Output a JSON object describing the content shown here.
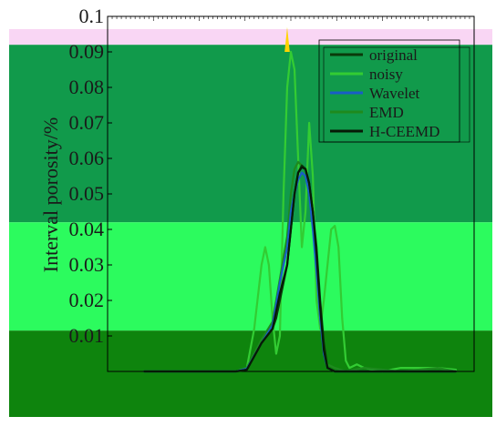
{
  "chart_data": {
    "type": "line",
    "ylabel": "Interval porosity/%",
    "ylim": [
      0,
      0.1
    ],
    "yticks": [
      0.01,
      0.02,
      0.03,
      0.04,
      0.05,
      0.06,
      0.07,
      0.08,
      0.09,
      0.1
    ],
    "ytick_labels": [
      "0.01",
      "0.02",
      "0.03",
      "0.04",
      "0.05",
      "0.06",
      "0.07",
      "0.08",
      "0.09",
      "0.1"
    ],
    "xlim": [
      0,
      100
    ],
    "legend_position": "top-right",
    "bands": [
      {
        "from": 0.092,
        "to": 0.1,
        "color": "#f9d6f4"
      },
      {
        "from": 0.042,
        "to": 0.092,
        "color": "#119a4b"
      },
      {
        "from": 0.0115,
        "to": 0.042,
        "color": "#2cfb5e"
      },
      {
        "from": -0.02,
        "to": 0.0115,
        "color": "#0e840d"
      }
    ],
    "series": [
      {
        "name": "original",
        "color": "#0a3a0a",
        "width": 2.2,
        "x": [
          10,
          20,
          30,
          35,
          38,
          42,
          45,
          46,
          47,
          48,
          49,
          50,
          51,
          52,
          53,
          54,
          55,
          56,
          57,
          58,
          59,
          60,
          62,
          65,
          70,
          80,
          90,
          95
        ],
        "y": [
          0,
          0,
          0,
          0,
          0.0005,
          0.008,
          0.012,
          0.015,
          0.02,
          0.025,
          0.03,
          0.04,
          0.05,
          0.056,
          0.058,
          0.057,
          0.053,
          0.045,
          0.035,
          0.02,
          0.008,
          0.001,
          0,
          0,
          0,
          0,
          0,
          0
        ]
      },
      {
        "name": "noisy",
        "color": "#33cc33",
        "width": 2.2,
        "x": [
          10,
          20,
          30,
          35,
          38,
          40,
          42,
          43,
          44,
          45,
          46,
          47,
          48,
          49,
          50,
          51,
          52,
          53,
          54,
          55,
          56,
          57,
          58,
          59,
          60,
          61,
          62,
          63,
          64,
          65,
          66,
          68,
          70,
          75,
          80,
          90,
          95
        ],
        "y": [
          0,
          0,
          0,
          0,
          0.001,
          0.012,
          0.03,
          0.035,
          0.03,
          0.015,
          0.005,
          0.01,
          0.05,
          0.08,
          0.09,
          0.085,
          0.06,
          0.035,
          0.045,
          0.07,
          0.055,
          0.02,
          0.012,
          0.02,
          0.03,
          0.04,
          0.041,
          0.035,
          0.015,
          0.003,
          0.001,
          0.002,
          0.001,
          0,
          0.001,
          0.001,
          0.0005
        ]
      },
      {
        "name": "Wavelet",
        "color": "#1a5cc8",
        "width": 2.2,
        "x": [
          10,
          20,
          30,
          35,
          38,
          42,
          45,
          47,
          49,
          50,
          51,
          52,
          53,
          54,
          55,
          56,
          57,
          58,
          59,
          60,
          62,
          65,
          70,
          80,
          90,
          95
        ],
        "y": [
          0,
          0,
          0,
          0,
          0.0008,
          0.008,
          0.013,
          0.025,
          0.035,
          0.045,
          0.05,
          0.054,
          0.056,
          0.055,
          0.05,
          0.04,
          0.028,
          0.015,
          0.005,
          0.001,
          0,
          0,
          0,
          0,
          0,
          0
        ]
      },
      {
        "name": "EMD",
        "color": "#1e8a1e",
        "width": 2.2,
        "x": [
          10,
          20,
          30,
          35,
          38,
          42,
          45,
          47,
          49,
          50,
          51,
          52,
          53,
          54,
          55,
          56,
          57,
          58,
          59,
          60,
          62,
          65,
          70,
          80,
          90,
          95
        ],
        "y": [
          0,
          0,
          0,
          0,
          0.001,
          0.009,
          0.014,
          0.026,
          0.038,
          0.05,
          0.057,
          0.059,
          0.058,
          0.057,
          0.052,
          0.045,
          0.03,
          0.015,
          0.006,
          0.002,
          0.001,
          0,
          0.001,
          0,
          0.001,
          0
        ]
      },
      {
        "name": "H-CEEMD",
        "color": "#061a06",
        "width": 2.2,
        "x": [
          10,
          20,
          30,
          35,
          38,
          42,
          45,
          47,
          49,
          50,
          51,
          52,
          53,
          54,
          55,
          56,
          57,
          58,
          59,
          60,
          62,
          65,
          70,
          80,
          90,
          95
        ],
        "y": [
          0,
          0,
          0,
          0,
          0.0005,
          0.008,
          0.012,
          0.022,
          0.03,
          0.04,
          0.05,
          0.056,
          0.0575,
          0.057,
          0.053,
          0.045,
          0.033,
          0.018,
          0.006,
          0.001,
          0,
          0,
          0,
          0,
          0,
          0
        ]
      }
    ],
    "spike": {
      "x": [
        48.3,
        49,
        49.7
      ],
      "y": [
        0.09,
        0.097,
        0.09
      ],
      "color": "#ffd400"
    }
  }
}
